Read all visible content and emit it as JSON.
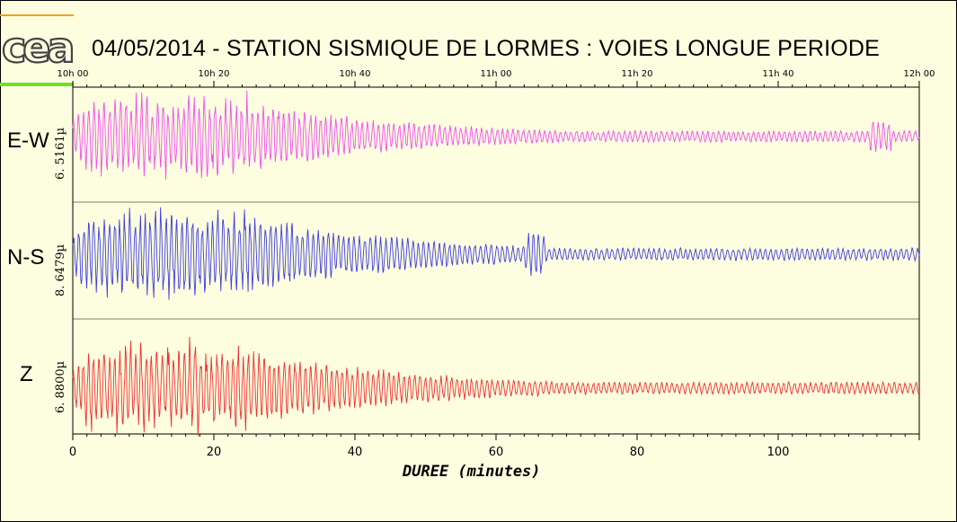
{
  "header": {
    "logo_text": "cea",
    "title": "04/05/2014  -  STATION SISMIQUE DE LORMES : VOIES LONGUE PERIODE"
  },
  "colors": {
    "background": "#fdfde0",
    "ew": "#f050f0",
    "ns": "#4040e0",
    "z": "#f03030",
    "logo_orange": "#f0a020",
    "logo_green": "#70e020"
  },
  "chart_data": {
    "type": "line",
    "title": "04/05/2014  -  STATION SISMIQUE DE LORMES : VOIES LONGUE PERIODE",
    "xlabel": "DUREE (minutes)",
    "xlim": [
      0,
      120
    ],
    "x_ticks_bottom": [
      "0",
      "20",
      "40",
      "60",
      "80",
      "100"
    ],
    "x_ticks_top": [
      "10h 00",
      "10h 20",
      "10h 40",
      "11h 00",
      "11h 20",
      "11h 40",
      "12h 00"
    ],
    "grid": false,
    "series": [
      {
        "name": "E-W",
        "amplitude_label": "6. 5161µ",
        "color": "#f050f0"
      },
      {
        "name": "N-S",
        "amplitude_label": "8. 6479µ",
        "color": "#4040e0"
      },
      {
        "name": "Z",
        "amplitude_label": "6. 8800µ",
        "color": "#f03030"
      }
    ]
  }
}
